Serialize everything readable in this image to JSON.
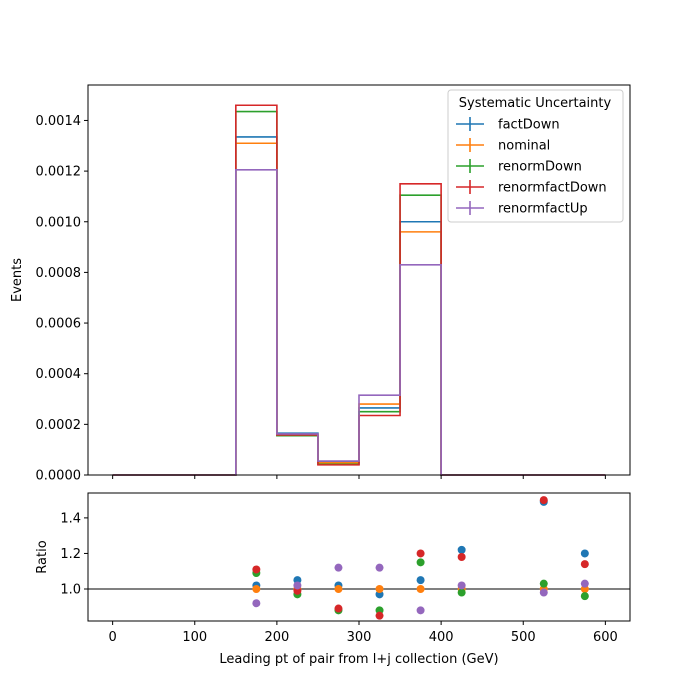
{
  "chart_data": [
    {
      "type": "step-histogram",
      "xlabel": "",
      "ylabel": "Events",
      "xlim": [
        -30,
        630
      ],
      "ylim": [
        0,
        0.00154
      ],
      "yticks": [
        0.0,
        0.0002,
        0.0004,
        0.0006,
        0.0008,
        0.001,
        0.0012,
        0.0014
      ],
      "ytick_labels": [
        "0.0000",
        "0.0002",
        "0.0004",
        "0.0006",
        "0.0008",
        "0.0010",
        "0.0012",
        "0.0014"
      ],
      "bin_edges": [
        0,
        50,
        100,
        150,
        200,
        250,
        300,
        350,
        400,
        450,
        500,
        550,
        600
      ],
      "legend": {
        "title": "Systematic Uncertainty",
        "placement": "top-right"
      },
      "series": [
        {
          "name": "factDown",
          "color": "#1f77b4",
          "values": [
            0,
            0,
            0,
            0.001335,
            0.000165,
            5e-05,
            0.000265,
            0.001,
            0,
            0,
            0,
            0
          ]
        },
        {
          "name": "nominal",
          "color": "#ff7f0e",
          "values": [
            0,
            0,
            0,
            0.00131,
            0.00016,
            4.8e-05,
            0.00028,
            0.00096,
            0,
            0,
            0,
            0
          ]
        },
        {
          "name": "renormDown",
          "color": "#2ca02c",
          "values": [
            0,
            0,
            0,
            0.001435,
            0.000155,
            4.2e-05,
            0.00025,
            0.001105,
            0,
            0,
            0,
            0
          ]
        },
        {
          "name": "renormfactDown",
          "color": "#d62728",
          "values": [
            0,
            0,
            0,
            0.00146,
            0.000158,
            4e-05,
            0.000235,
            0.00115,
            0,
            0,
            0,
            0
          ]
        },
        {
          "name": "renormfactUp",
          "color": "#9467bd",
          "values": [
            0,
            0,
            0,
            0.001205,
            0.000162,
            5.5e-05,
            0.000315,
            0.00083,
            0,
            0,
            0,
            0
          ]
        }
      ]
    },
    {
      "type": "scatter",
      "xlabel": "Leading pt of pair from l+j collection (GeV)",
      "ylabel": "Ratio",
      "xlim": [
        -30,
        630
      ],
      "ylim": [
        0.82,
        1.54
      ],
      "xticks": [
        0,
        100,
        200,
        300,
        400,
        500,
        600
      ],
      "xtick_labels": [
        "0",
        "100",
        "200",
        "300",
        "400",
        "500",
        "600"
      ],
      "yticks": [
        1.0,
        1.2,
        1.4
      ],
      "ytick_labels": [
        "1.0",
        "1.2",
        "1.4"
      ],
      "reference_line": 1.0,
      "x": [
        175,
        225,
        275,
        325,
        375,
        425,
        525,
        575
      ],
      "series": [
        {
          "name": "factDown",
          "color": "#1f77b4",
          "values": [
            1.02,
            1.05,
            1.02,
            0.97,
            1.05,
            1.22,
            1.49,
            1.2
          ]
        },
        {
          "name": "nominal",
          "color": "#ff7f0e",
          "values": [
            1.0,
            1.0,
            1.0,
            1.0,
            1.0,
            1.0,
            1.0,
            1.0
          ]
        },
        {
          "name": "renormDown",
          "color": "#2ca02c",
          "values": [
            1.09,
            0.97,
            0.88,
            0.88,
            1.15,
            0.98,
            1.03,
            0.96
          ]
        },
        {
          "name": "renormfactDown",
          "color": "#d62728",
          "values": [
            1.11,
            0.99,
            0.89,
            0.85,
            1.2,
            1.18,
            1.5,
            1.14
          ]
        },
        {
          "name": "renormfactUp",
          "color": "#9467bd",
          "values": [
            0.92,
            1.02,
            1.12,
            1.12,
            0.88,
            1.02,
            0.98,
            1.03
          ]
        }
      ]
    }
  ]
}
